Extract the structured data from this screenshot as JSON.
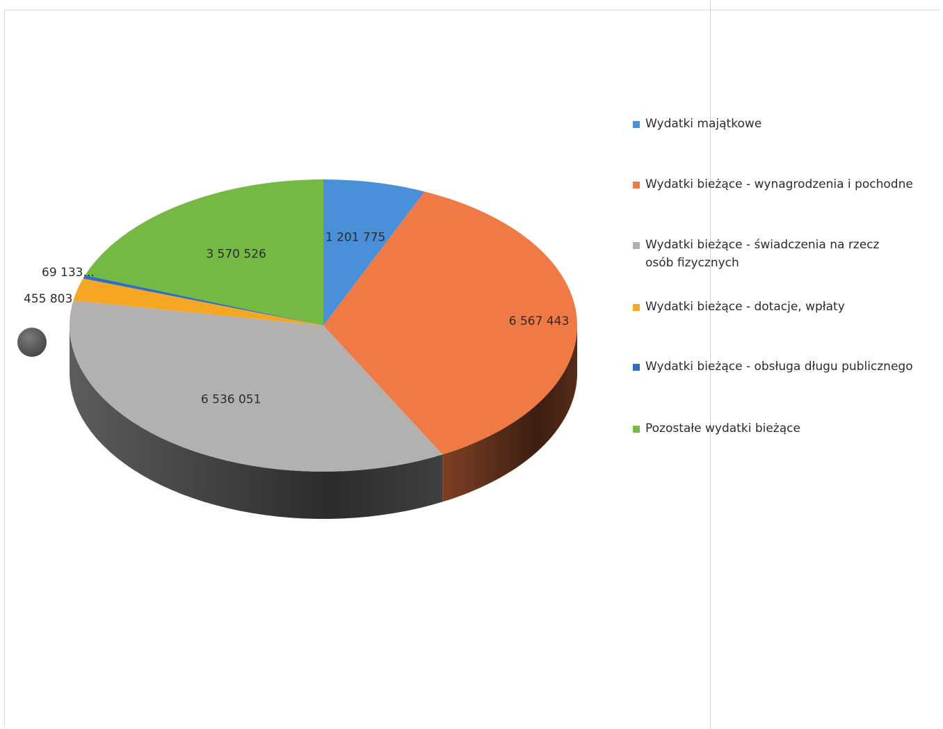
{
  "chart_data": {
    "type": "pie",
    "style": "3d",
    "categories": [
      "Wydatki majątkowe",
      "Wydatki bieżące - wynagrodzenia i pochodne",
      "Wydatki bieżące - świadczenia na rzecz osób fizycznych",
      "Wydatki bieżące - dotacje, wpłaty",
      "Wydatki bieżące - obsługa długu publicznego",
      "Pozostałe wydatki bieżące"
    ],
    "values": [
      1201775,
      6567443,
      6536051,
      455803,
      69133,
      3570526
    ],
    "data_labels": [
      "1 201 775",
      "6 567 443",
      "6 536 051",
      "455 803",
      "69 133...",
      "3 570 526"
    ],
    "colors": [
      "#4a90d9",
      "#f07a45",
      "#b3b1b0",
      "#f5a623",
      "#2e6fc0",
      "#74b944"
    ],
    "legend_position": "right"
  },
  "legend": {
    "items": [
      {
        "label": "Wydatki majątkowe",
        "color": "#4a90d9"
      },
      {
        "label": "Wydatki bieżące - wynagrodzenia i pochodne",
        "color": "#f07a45"
      },
      {
        "label": "Wydatki bieżące - świadczenia na rzecz osób fizycznych",
        "color": "#b3b1b0"
      },
      {
        "label": "Wydatki bieżące - dotacje, wpłaty",
        "color": "#f5a623"
      },
      {
        "label": "Wydatki bieżące - obsługa długu publicznego",
        "color": "#2e6fc0"
      },
      {
        "label": "Pozostałe wydatki bieżące",
        "color": "#74b944"
      }
    ]
  }
}
